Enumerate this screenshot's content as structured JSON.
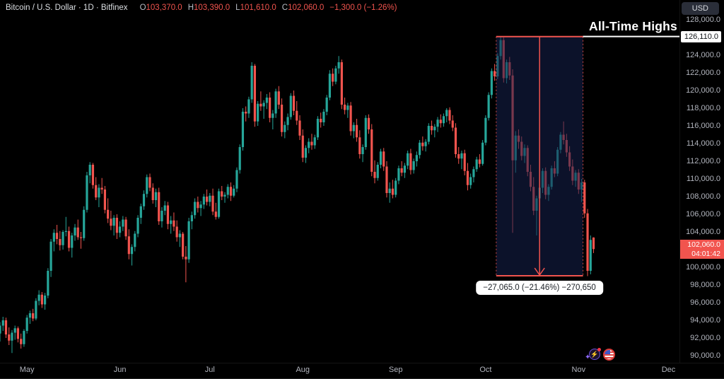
{
  "legend": {
    "title": "Bitcoin / U.S. Dollar · 1D · Bitfinex",
    "items": [
      {
        "k": "O",
        "v": "103,370.0"
      },
      {
        "k": "H",
        "v": "103,390.0"
      },
      {
        "k": "L",
        "v": "101,610.0"
      },
      {
        "k": "C",
        "v": "102,060.0"
      }
    ],
    "change": "−1,300.0 (−1.26%)"
  },
  "toolbar": {
    "currency_button": "USD"
  },
  "annotations": {
    "ath_text": "All-Time Highs",
    "ath_price_label": "126,110.0",
    "measure_label": "−27,065.0 (−21.46%) −270,650",
    "current_price": "102,060.0",
    "countdown": "04:01:42"
  },
  "icons": {
    "lightning": "⚡",
    "sparkle": "✦"
  },
  "colors": {
    "up": "#26a69a",
    "down": "#f1544e",
    "background": "#000000",
    "axis_text": "#b2b5be",
    "box_fill": "rgba(22,33,76,0.55)",
    "ath_line": "#ffffff",
    "current_label_bg": "#f1544e",
    "usd_button_bg": "#2a2e39"
  },
  "chart_data": {
    "type": "candlestick",
    "title": "Bitcoin / U.S. Dollar · 1D · Bitfinex",
    "symbol": "Bitcoin / U.S. Dollar",
    "interval": "1D",
    "exchange": "Bitfinex",
    "unit": "USD thousands",
    "grid": false,
    "ylim_k": [
      89.0,
      130.2
    ],
    "ath_price_k": 126.11,
    "x_ticks": [
      {
        "label": "May",
        "day": 9
      },
      {
        "label": "Jun",
        "day": 40
      },
      {
        "label": "Jul",
        "day": 70
      },
      {
        "label": "Aug",
        "day": 101
      },
      {
        "label": "Sep",
        "day": 132
      },
      {
        "label": "Oct",
        "day": 162
      },
      {
        "label": "Nov",
        "day": 193
      },
      {
        "label": "Dec",
        "day": 223
      }
    ],
    "y_ticks": [
      {
        "v": 128000,
        "label": "128,000.0"
      },
      {
        "v": 124000,
        "label": "124,000.0"
      },
      {
        "v": 122000,
        "label": "122,000.0"
      },
      {
        "v": 120000,
        "label": "120,000.0"
      },
      {
        "v": 118000,
        "label": "118,000.0"
      },
      {
        "v": 116000,
        "label": "116,000.0"
      },
      {
        "v": 114000,
        "label": "114,000.0"
      },
      {
        "v": 112000,
        "label": "112,000.0"
      },
      {
        "v": 110000,
        "label": "110,000.0"
      },
      {
        "v": 108000,
        "label": "108,000.0"
      },
      {
        "v": 106000,
        "label": "106,000.0"
      },
      {
        "v": 104000,
        "label": "104,000.0"
      },
      {
        "v": 100000,
        "label": "100,000.0"
      },
      {
        "v": 98000,
        "label": "98,000.0"
      },
      {
        "v": 96000,
        "label": "96,000.0"
      },
      {
        "v": 94000,
        "label": "94,000.0"
      },
      {
        "v": 92000,
        "label": "92,000.0"
      },
      {
        "v": 90000,
        "label": "90,000.0"
      }
    ],
    "measure_box": {
      "from_day": 166,
      "to_day": 194,
      "mid_day": 180,
      "top_price_k": 126.105,
      "bottom_price_k": 99.04,
      "change_abs": -27065.0,
      "change_pct": -21.46,
      "volume_note": "-270,650"
    },
    "candles": [
      [
        92.5,
        93.8,
        91.6,
        93.4
      ],
      [
        93.4,
        94.4,
        92.8,
        94
      ],
      [
        94,
        94.3,
        92,
        92.4
      ],
      [
        92.4,
        93.2,
        91.2,
        91.7
      ],
      [
        91.7,
        92.9,
        90.3,
        92.6
      ],
      [
        92.6,
        93.4,
        91.8,
        93.1
      ],
      [
        93.1,
        93.3,
        91.5,
        91.9
      ],
      [
        91.9,
        92.5,
        90.8,
        91.3
      ],
      [
        91.3,
        93,
        91,
        92.8
      ],
      [
        92.8,
        94.6,
        92.5,
        94.3
      ],
      [
        94.3,
        95.1,
        93.6,
        94.8
      ],
      [
        94.8,
        95.3,
        93.9,
        94.2
      ],
      [
        94.2,
        96.5,
        94,
        96.2
      ],
      [
        96.2,
        97.4,
        95.7,
        96.9
      ],
      [
        96.9,
        97.2,
        95.4,
        95.8
      ],
      [
        95.8,
        97.1,
        95.2,
        96.8
      ],
      [
        96.8,
        99.9,
        96.5,
        99.6
      ],
      [
        99.6,
        103.2,
        98.9,
        102.9
      ],
      [
        102.9,
        104.3,
        101.8,
        103.9
      ],
      [
        103.9,
        104.8,
        102.6,
        103.2
      ],
      [
        103.2,
        104.1,
        101.9,
        102.5
      ],
      [
        102.5,
        104.2,
        102,
        104
      ],
      [
        104,
        105.7,
        103.5,
        104.1
      ],
      [
        104.1,
        104.6,
        101.8,
        102.2
      ],
      [
        102.2,
        103.9,
        101.1,
        103.6
      ],
      [
        103.6,
        104.9,
        103,
        104.5
      ],
      [
        104.5,
        105.4,
        103.1,
        103.4
      ],
      [
        103.4,
        104,
        102.1,
        103.3
      ],
      [
        103.3,
        106.9,
        103,
        106.5
      ],
      [
        106.5,
        110.8,
        106.2,
        110.4
      ],
      [
        110.4,
        111.9,
        109.5,
        111.6
      ],
      [
        111.6,
        111.8,
        108.9,
        109.3
      ],
      [
        109.3,
        110.2,
        107.6,
        107.9
      ],
      [
        107.9,
        109.4,
        106.8,
        109
      ],
      [
        109,
        110.1,
        108.3,
        108.8
      ],
      [
        108.8,
        109.2,
        106.1,
        106.5
      ],
      [
        106.5,
        107.8,
        105,
        105.5
      ],
      [
        105.5,
        106.4,
        104.2,
        104.7
      ],
      [
        104.7,
        105.9,
        103.6,
        105.6
      ],
      [
        105.6,
        106,
        103.2,
        103.9
      ],
      [
        103.9,
        105.2,
        103.4,
        104.6
      ],
      [
        104.6,
        105.8,
        104.1,
        105.4
      ],
      [
        105.4,
        105.7,
        103.1,
        103.5
      ],
      [
        103.5,
        104.3,
        100.9,
        101.5
      ],
      [
        101.5,
        102.6,
        100.2,
        102.3
      ],
      [
        102.3,
        104.1,
        101.8,
        103.8
      ],
      [
        103.8,
        105.9,
        103.4,
        105.6
      ],
      [
        105.6,
        107.2,
        104.9,
        106.9
      ],
      [
        106.9,
        108.7,
        106.5,
        108.3
      ],
      [
        108.3,
        110.5,
        107.9,
        110.2
      ],
      [
        110.2,
        110.6,
        108.6,
        109
      ],
      [
        109,
        109.5,
        107.2,
        107.6
      ],
      [
        107.6,
        108.9,
        106.8,
        108.5
      ],
      [
        108.5,
        109,
        104.8,
        105.2
      ],
      [
        105.2,
        106.8,
        104.5,
        106.4
      ],
      [
        106.4,
        107.5,
        105.9,
        107
      ],
      [
        107,
        107.4,
        104.3,
        104.9
      ],
      [
        104.9,
        105.8,
        103.8,
        105.3
      ],
      [
        105.3,
        106.2,
        104.1,
        104.6
      ],
      [
        104.6,
        105.3,
        102.9,
        103.4
      ],
      [
        103.4,
        104.2,
        102.3,
        103.8
      ],
      [
        103.8,
        104,
        100.9,
        101.2
      ],
      [
        101.2,
        102.4,
        98.3,
        100.9
      ],
      [
        100.9,
        105.6,
        100.5,
        105.2
      ],
      [
        105.2,
        106.3,
        104.3,
        105.9
      ],
      [
        105.9,
        107.8,
        105.5,
        107.4
      ],
      [
        107.4,
        108,
        106.2,
        106.7
      ],
      [
        106.7,
        107.5,
        105.8,
        107.1
      ],
      [
        107.1,
        108.3,
        106.6,
        108
      ],
      [
        108,
        108.8,
        107,
        107.4
      ],
      [
        107.4,
        108.4,
        106.9,
        108.1
      ],
      [
        108.1,
        108.9,
        105.9,
        106.3
      ],
      [
        106.3,
        107.3,
        105.4,
        105.7
      ],
      [
        105.7,
        108.9,
        105.5,
        108.6
      ],
      [
        108.6,
        109.2,
        107.6,
        108
      ],
      [
        108,
        108.5,
        107.3,
        108.2
      ],
      [
        108.2,
        109.4,
        107.8,
        109.1
      ],
      [
        109.1,
        109.6,
        107.5,
        108.1
      ],
      [
        108.1,
        109.3,
        107.9,
        108.9
      ],
      [
        108.9,
        111.3,
        108.5,
        111
      ],
      [
        111,
        113.9,
        110.6,
        113.6
      ],
      [
        113.6,
        118,
        113.2,
        117.6
      ],
      [
        117.6,
        118.2,
        116.5,
        117.4
      ],
      [
        117.4,
        119.3,
        116.9,
        119
      ],
      [
        119,
        123.2,
        118.6,
        122.8
      ],
      [
        122.8,
        123,
        115.9,
        116.5
      ],
      [
        116.5,
        118.8,
        116,
        118.5
      ],
      [
        118.5,
        119.9,
        117.7,
        118.2
      ],
      [
        118.2,
        118.9,
        116.8,
        118.6
      ],
      [
        118.6,
        119.6,
        117.9,
        119.2
      ],
      [
        119.2,
        119.8,
        116.4,
        116.9
      ],
      [
        116.9,
        117.8,
        115.6,
        117.4
      ],
      [
        117.4,
        120.2,
        116.9,
        119.9
      ],
      [
        119.9,
        120.5,
        117.9,
        118.4
      ],
      [
        118.4,
        119.1,
        114.8,
        115.3
      ],
      [
        115.3,
        116.5,
        114.6,
        116.1
      ],
      [
        116.1,
        117.4,
        115.5,
        117
      ],
      [
        117,
        119.7,
        116.7,
        119.4
      ],
      [
        119.4,
        120,
        117.2,
        117.7
      ],
      [
        117.7,
        118.8,
        116.1,
        116.6
      ],
      [
        116.6,
        117.2,
        114.4,
        114.9
      ],
      [
        114.9,
        115.6,
        111.9,
        112.4
      ],
      [
        112.4,
        113.8,
        111.8,
        113.5
      ],
      [
        113.5,
        114.6,
        112.9,
        114.2
      ],
      [
        114.2,
        115.1,
        113.3,
        113.8
      ],
      [
        113.8,
        115,
        113.4,
        114.7
      ],
      [
        114.7,
        117.1,
        114.4,
        116.8
      ],
      [
        116.8,
        117.5,
        115.8,
        116.4
      ],
      [
        116.4,
        117.9,
        116,
        117.6
      ],
      [
        117.6,
        119.5,
        117.2,
        119.2
      ],
      [
        119.2,
        122.3,
        118.9,
        121.9
      ],
      [
        121.9,
        122.5,
        120.5,
        121
      ],
      [
        121,
        122.8,
        120.7,
        122.5
      ],
      [
        122.5,
        123.9,
        121.9,
        123.2
      ],
      [
        123.2,
        123.5,
        117.9,
        118.4
      ],
      [
        118.4,
        119.2,
        117.3,
        117.8
      ],
      [
        117.8,
        118.6,
        116.9,
        118.3
      ],
      [
        118.3,
        118.7,
        114.9,
        115.4
      ],
      [
        115.4,
        116.4,
        114.6,
        116.1
      ],
      [
        116.1,
        116.8,
        114.2,
        114.7
      ],
      [
        114.7,
        115.5,
        112.3,
        112.8
      ],
      [
        112.8,
        113.9,
        111.9,
        113.6
      ],
      [
        113.6,
        117.2,
        113.3,
        116.9
      ],
      [
        116.9,
        117.3,
        115.1,
        115.6
      ],
      [
        115.6,
        116.2,
        110.3,
        110.8
      ],
      [
        110.8,
        112.1,
        109.5,
        110.1
      ],
      [
        110.1,
        111.9,
        109.8,
        111.6
      ],
      [
        111.6,
        113.4,
        111.2,
        113.1
      ],
      [
        113.1,
        113.5,
        110.9,
        111.4
      ],
      [
        111.4,
        112,
        107.9,
        108.4
      ],
      [
        108.4,
        109.6,
        107.3,
        108.9
      ],
      [
        108.9,
        109.9,
        107.8,
        108.2
      ],
      [
        108.2,
        110.1,
        107.9,
        109.8
      ],
      [
        109.8,
        111.5,
        109.4,
        111.2
      ],
      [
        111.2,
        112,
        110.3,
        110.7
      ],
      [
        110.7,
        111.8,
        110.1,
        111.5
      ],
      [
        111.5,
        113.2,
        111.1,
        112.9
      ],
      [
        112.9,
        113.4,
        110.5,
        111
      ],
      [
        111,
        112.3,
        110.6,
        112
      ],
      [
        112,
        113.1,
        111.4,
        112.7
      ],
      [
        112.7,
        114.4,
        112.3,
        114.1
      ],
      [
        114.1,
        114.8,
        113.2,
        113.7
      ],
      [
        113.7,
        114.5,
        113.1,
        114.2
      ],
      [
        114.2,
        116.3,
        113.9,
        116
      ],
      [
        116,
        116.6,
        115,
        115.5
      ],
      [
        115.5,
        116.2,
        114.7,
        115.9
      ],
      [
        115.9,
        117,
        115.3,
        116.7
      ],
      [
        116.7,
        117.3,
        115.8,
        116.3
      ],
      [
        116.3,
        117.4,
        115.9,
        117.1
      ],
      [
        117.1,
        118,
        116.4,
        117.8
      ],
      [
        117.8,
        118.1,
        116.2,
        116.6
      ],
      [
        116.6,
        117.2,
        115.4,
        115.8
      ],
      [
        115.8,
        116.3,
        112.4,
        112.8
      ],
      [
        112.8,
        113.6,
        111.7,
        112.3
      ],
      [
        112.3,
        113.2,
        111.1,
        112.9
      ],
      [
        112.9,
        113.3,
        110.4,
        110.9
      ],
      [
        110.9,
        111.8,
        108.7,
        109.3
      ],
      [
        109.3,
        110.6,
        108.9,
        110.2
      ],
      [
        110.2,
        111.4,
        109.6,
        111.1
      ],
      [
        111.1,
        112.5,
        110.8,
        112.2
      ],
      [
        112.2,
        112.8,
        111.3,
        111.7
      ],
      [
        111.7,
        114.4,
        111.5,
        114.1
      ],
      [
        114.1,
        117.2,
        113.8,
        116.9
      ],
      [
        116.9,
        119.8,
        116.6,
        119.5
      ],
      [
        119.5,
        122.5,
        119.1,
        122.2
      ],
      [
        122.2,
        123,
        121.1,
        121.6
      ],
      [
        121.6,
        124.2,
        121.3,
        123.9
      ],
      [
        123.9,
        126.1,
        123.5,
        125.7
      ],
      [
        125.7,
        126,
        120.9,
        121.4
      ],
      [
        121.4,
        123.5,
        120.8,
        123.2
      ],
      [
        123.2,
        123.8,
        121.2,
        121.7
      ],
      [
        121.7,
        122.4,
        103.9,
        112.1
      ],
      [
        112.1,
        115.4,
        110.7,
        114.9
      ],
      [
        114.9,
        115.6,
        113.4,
        114.2
      ],
      [
        114.2,
        114.8,
        112.1,
        112.6
      ],
      [
        112.6,
        113.9,
        111.8,
        113.5
      ],
      [
        113.5,
        113.8,
        110.3,
        110.8
      ],
      [
        110.8,
        111.6,
        108.6,
        109.1
      ],
      [
        109.1,
        110.2,
        105.9,
        106.4
      ],
      [
        106.4,
        108.1,
        103.6,
        107.8
      ],
      [
        107.8,
        109.3,
        107.2,
        109
      ],
      [
        109,
        111.2,
        108.4,
        110.9
      ],
      [
        110.9,
        111.3,
        107.7,
        108.2
      ],
      [
        108.2,
        109.4,
        107.5,
        109.1
      ],
      [
        109.1,
        111.5,
        108.8,
        111.2
      ],
      [
        111.2,
        112,
        110.2,
        110.6
      ],
      [
        110.6,
        113.6,
        110.3,
        113.3
      ],
      [
        113.3,
        115.3,
        112.9,
        115
      ],
      [
        115,
        116.5,
        113.9,
        114.4
      ],
      [
        114.4,
        115.1,
        112.5,
        113
      ],
      [
        113,
        113.7,
        110.9,
        111.4
      ],
      [
        111.4,
        112.2,
        109.3,
        109.8
      ],
      [
        109.8,
        111,
        109.1,
        110.7
      ],
      [
        110.7,
        111.1,
        108.3,
        108.8
      ],
      [
        108.8,
        110,
        107.4,
        109.6
      ],
      [
        109.6,
        109.9,
        105.6,
        106.1
      ],
      [
        106.1,
        106.6,
        99,
        99.6
      ],
      [
        99.6,
        103.6,
        99.2,
        103.1
      ],
      [
        103.37,
        103.39,
        101.61,
        102.06
      ]
    ]
  }
}
